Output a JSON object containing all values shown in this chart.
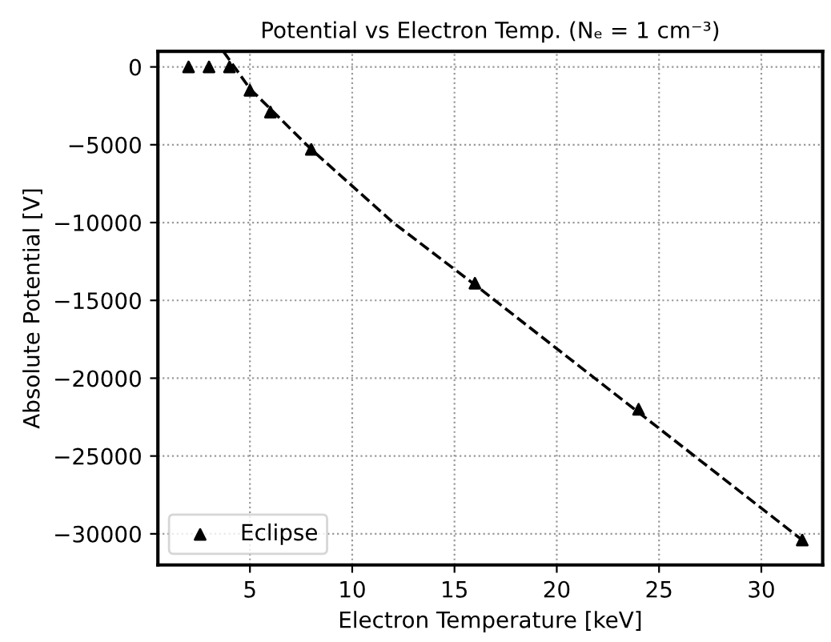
{
  "chart_data": {
    "type": "scatter",
    "title": "Potential vs Electron Temp. (Nₑ = 1 cm⁻³)",
    "xlabel": "Electron Temperature [keV]",
    "ylabel": "Absolute Potential [V]",
    "series": [
      {
        "name": "Eclipse",
        "color": "#000000",
        "marker": "triangle",
        "x": [
          2,
          3,
          4,
          5,
          6,
          8,
          16,
          24,
          32
        ],
        "values": [
          0,
          0,
          0,
          -1500,
          -2900,
          -5300,
          -13900,
          -22000,
          -30400
        ]
      },
      {
        "type": "line",
        "color": "#000000",
        "line_style": "dashed",
        "marker": "none",
        "x": [
          3.7,
          5,
          8,
          12,
          16,
          24,
          32
        ],
        "values": [
          1000,
          -1400,
          -5300,
          -10000,
          -14000,
          -22200,
          -30400
        ]
      }
    ],
    "xlim": [
      0.5,
      33
    ],
    "xticks": [
      5,
      10,
      15,
      20,
      25,
      30
    ],
    "ylim": [
      -32000,
      1000
    ],
    "yticks": [
      0,
      -5000,
      -10000,
      -15000,
      -20000,
      -25000,
      -30000
    ],
    "grid": true,
    "legend": "bottom left"
  }
}
